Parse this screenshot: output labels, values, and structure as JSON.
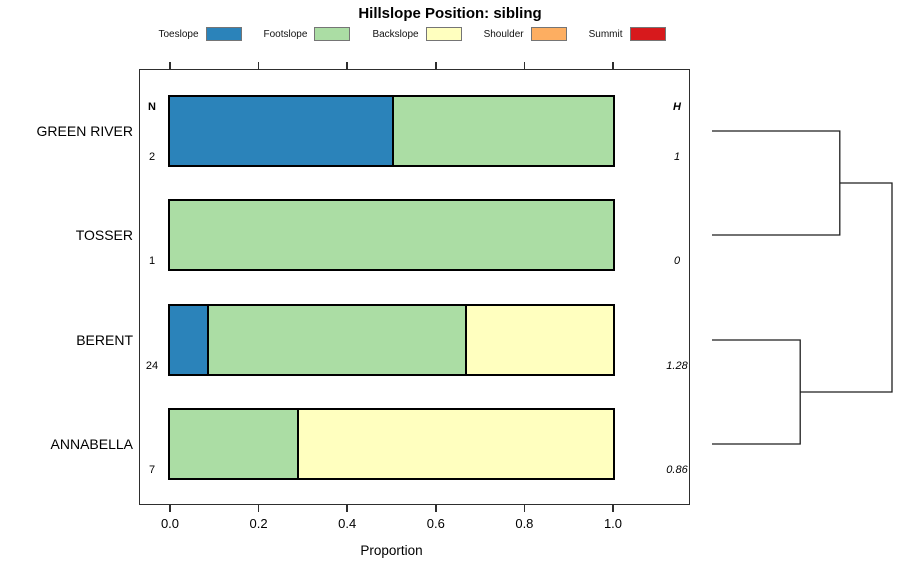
{
  "chart_data": {
    "type": "bar",
    "variant": "horizontal-stacked-proportion",
    "title": "Hillslope Position: sibling",
    "xlabel": "Proportion",
    "xlim": [
      0,
      1
    ],
    "xticks": [
      "0.0",
      "0.2",
      "0.4",
      "0.6",
      "0.8",
      "1.0"
    ],
    "grid": false,
    "legend_position": "top",
    "legend": [
      {
        "label": "Toeslope",
        "color": "#2b83ba"
      },
      {
        "label": "Footslope",
        "color": "#abdda4"
      },
      {
        "label": "Backslope",
        "color": "#ffffbf"
      },
      {
        "label": "Shoulder",
        "color": "#fdae61"
      },
      {
        "label": "Summit",
        "color": "#d7191c"
      }
    ],
    "columns": {
      "n_header": "N",
      "h_header": "H"
    },
    "rows": [
      {
        "label": "GREEN RIVER",
        "n": "2",
        "h": "1",
        "segments": [
          {
            "name": "Toeslope",
            "value": 0.5
          },
          {
            "name": "Footslope",
            "value": 0.5
          }
        ]
      },
      {
        "label": "TOSSER",
        "n": "1",
        "h": "0",
        "segments": [
          {
            "name": "Footslope",
            "value": 1.0
          }
        ]
      },
      {
        "label": "BERENT",
        "n": "24",
        "h": "1.28",
        "segments": [
          {
            "name": "Toeslope",
            "value": 0.083
          },
          {
            "name": "Footslope",
            "value": 0.583
          },
          {
            "name": "Backslope",
            "value": 0.334
          }
        ]
      },
      {
        "label": "ANNABELLA",
        "n": "7",
        "h": "0.86",
        "segments": [
          {
            "name": "Footslope",
            "value": 0.286
          },
          {
            "name": "Backslope",
            "value": 0.714
          }
        ]
      }
    ],
    "dendrogram": {
      "leaves": [
        "GREEN RIVER",
        "TOSSER",
        "BERENT",
        "ANNABELLA"
      ],
      "merges": [
        {
          "children": [
            0,
            1
          ],
          "x_frac": 0.71
        },
        {
          "children": [
            2,
            3
          ],
          "x_frac": 0.49
        },
        {
          "children": [
            "m0",
            "m1"
          ],
          "x_frac": 1.0
        }
      ]
    }
  }
}
